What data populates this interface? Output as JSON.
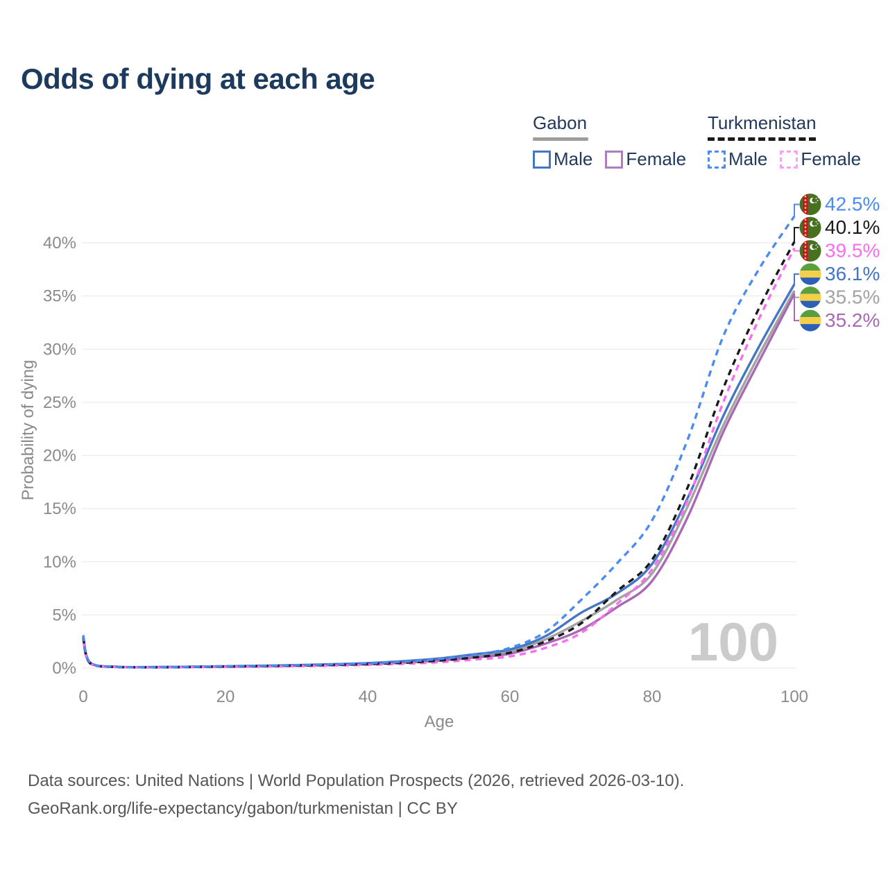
{
  "title": "Odds of dying at each age",
  "watermark": "100",
  "legend": {
    "groups": [
      {
        "name": "Gabon",
        "line_style": "solid",
        "underline_color": "#9e9e9e",
        "items": [
          {
            "label": "Male",
            "color": "#4576c4"
          },
          {
            "label": "Female",
            "color": "#a868b4"
          }
        ]
      },
      {
        "name": "Turkmenistan",
        "line_style": "dashed",
        "underline_color": "#1a1a1a",
        "items": [
          {
            "label": "Male",
            "color": "#4b8bf2"
          },
          {
            "label": "Female",
            "color": "#fa6df0"
          }
        ]
      }
    ]
  },
  "footer": {
    "line1": "Data sources: United Nations | World Population Prospects (2026, retrieved 2026-03-10).",
    "line2": "GeoRank.org/life-expectancy/gabon/turkmenistan | CC BY"
  },
  "chart_data": {
    "type": "line",
    "title": "Odds of dying at each age",
    "xlabel": "Age",
    "ylabel": "Probability of dying",
    "xlim": [
      0,
      100
    ],
    "ylim": [
      0,
      44
    ],
    "xticks": [
      0,
      20,
      40,
      60,
      80,
      100
    ],
    "yticks": [
      0,
      5,
      10,
      15,
      20,
      25,
      30,
      35,
      40
    ],
    "ytick_suffix": "%",
    "grid": "horizontal",
    "x": [
      0,
      1,
      5,
      10,
      15,
      20,
      25,
      30,
      35,
      40,
      45,
      50,
      55,
      60,
      65,
      70,
      75,
      80,
      85,
      90,
      95,
      100
    ],
    "series": [
      {
        "id": "turkmenistan_male",
        "name": "Turkmenistan Male",
        "country": "Turkmenistan",
        "sex": "Male",
        "color": "#4b8bf2",
        "dash": "dashed",
        "flag": "turkmenistan",
        "final_label": "42.5%",
        "final_value": 42.5,
        "values": [
          3.1,
          0.5,
          0.1,
          0.08,
          0.12,
          0.18,
          0.22,
          0.28,
          0.35,
          0.45,
          0.6,
          0.85,
          1.25,
          1.9,
          3.4,
          6.4,
          9.8,
          13.9,
          21.5,
          31.2,
          37.5,
          42.5
        ]
      },
      {
        "id": "turkmenistan_both",
        "name": "Turkmenistan Both sexes",
        "country": "Turkmenistan",
        "sex": "Both",
        "color": "#1a1a1a",
        "dash": "dashed",
        "flag": "turkmenistan",
        "final_label": "40.1%",
        "final_value": 40.1,
        "values": [
          2.9,
          0.45,
          0.09,
          0.07,
          0.1,
          0.15,
          0.19,
          0.24,
          0.3,
          0.38,
          0.5,
          0.7,
          1.0,
          1.45,
          2.5,
          4.2,
          7.2,
          10.2,
          17.0,
          26.3,
          33.8,
          40.1
        ]
      },
      {
        "id": "turkmenistan_female",
        "name": "Turkmenistan Female",
        "country": "Turkmenistan",
        "sex": "Female",
        "color": "#fa6df0",
        "dash": "dashed",
        "flag": "turkmenistan",
        "final_label": "39.5%",
        "final_value": 39.5,
        "values": [
          2.6,
          0.4,
          0.08,
          0.06,
          0.08,
          0.11,
          0.14,
          0.18,
          0.23,
          0.3,
          0.4,
          0.55,
          0.8,
          1.1,
          1.9,
          3.3,
          6.0,
          9.3,
          15.8,
          25.0,
          32.8,
          39.5
        ]
      },
      {
        "id": "gabon_male",
        "name": "Gabon Male",
        "country": "Gabon",
        "sex": "Male",
        "color": "#4576c4",
        "dash": "solid",
        "flag": "gabon",
        "final_label": "36.1%",
        "final_value": 36.1,
        "values": [
          3.0,
          0.5,
          0.12,
          0.1,
          0.13,
          0.17,
          0.22,
          0.28,
          0.36,
          0.47,
          0.65,
          0.9,
          1.3,
          1.75,
          3.0,
          5.2,
          7.0,
          9.8,
          16.0,
          23.7,
          30.2,
          36.1
        ]
      },
      {
        "id": "gabon_both",
        "name": "Gabon Both sexes",
        "country": "Gabon",
        "sex": "Both",
        "color": "#a3a3a3",
        "dash": "solid",
        "flag": "gabon",
        "final_label": "35.5%",
        "final_value": 35.5,
        "values": [
          2.85,
          0.47,
          0.11,
          0.09,
          0.12,
          0.15,
          0.2,
          0.25,
          0.32,
          0.42,
          0.57,
          0.8,
          1.15,
          1.55,
          2.7,
          4.4,
          6.4,
          8.9,
          15.2,
          22.8,
          29.4,
          35.5
        ]
      },
      {
        "id": "gabon_female",
        "name": "Gabon Female",
        "country": "Gabon",
        "sex": "Female",
        "color": "#a868b4",
        "dash": "solid",
        "flag": "gabon",
        "final_label": "35.2%",
        "final_value": 35.2,
        "values": [
          2.7,
          0.44,
          0.1,
          0.08,
          0.1,
          0.13,
          0.17,
          0.22,
          0.28,
          0.36,
          0.5,
          0.7,
          1.0,
          1.35,
          2.3,
          3.6,
          5.7,
          8.2,
          14.2,
          22.2,
          28.8,
          35.2
        ]
      }
    ],
    "annotations": [
      {
        "text": "100",
        "role": "age-watermark"
      }
    ]
  },
  "flag_colors": {
    "gabon": {
      "green": "#5a9e3e",
      "yellow": "#f6cf4a",
      "blue": "#2b60b5"
    },
    "turkmenistan": {
      "green": "#47701f",
      "red": "#c41230",
      "motif": "#f0c44e",
      "white": "#ffffff"
    }
  }
}
